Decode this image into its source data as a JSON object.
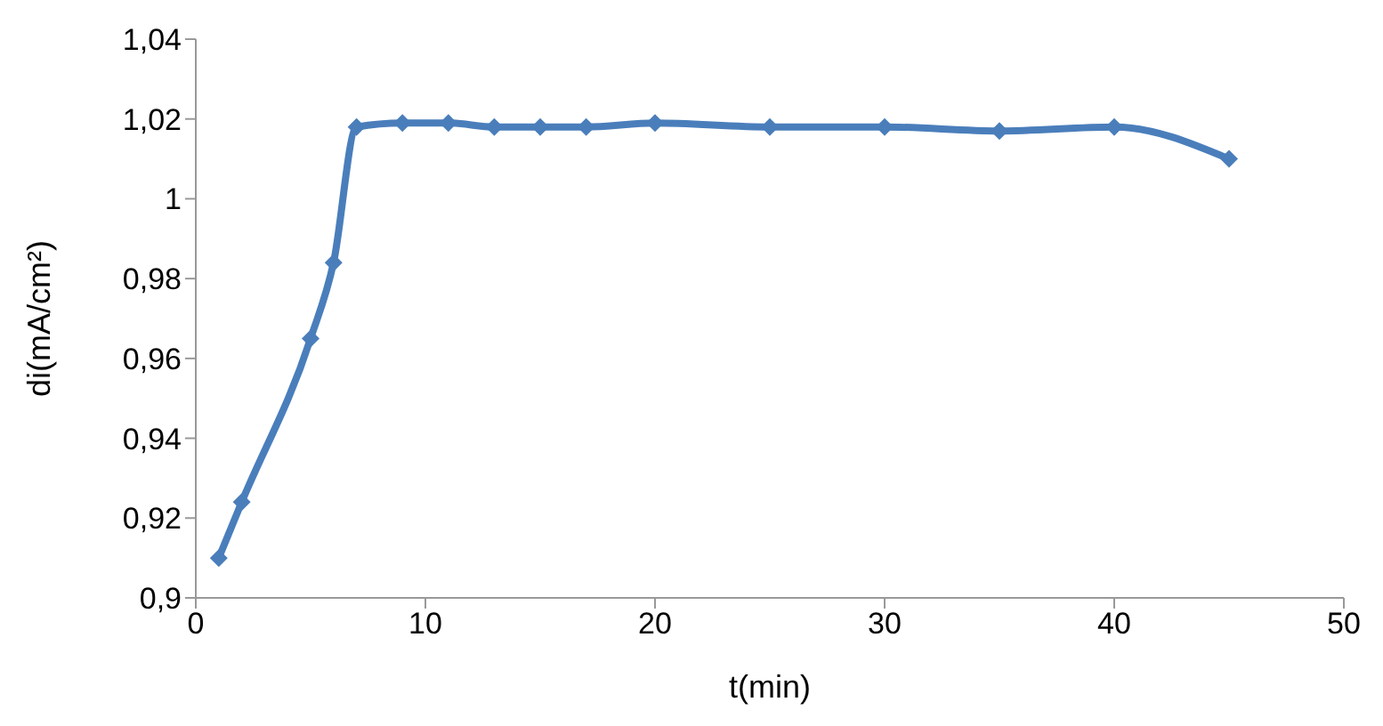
{
  "chart_data": {
    "type": "line",
    "xlabel": "t(min)",
    "ylabel": "di(mA/cm²)",
    "x": [
      1,
      2,
      5,
      6,
      7,
      9,
      11,
      13,
      15,
      17,
      20,
      25,
      30,
      35,
      40,
      45
    ],
    "series": [
      {
        "color": "#4a7ebb",
        "values": [
          0.91,
          0.924,
          0.965,
          0.984,
          1.018,
          1.019,
          1.019,
          1.018,
          1.018,
          1.018,
          1.019,
          1.018,
          1.018,
          1.017,
          1.018,
          1.01
        ]
      }
    ],
    "xlim": [
      0,
      50
    ],
    "xticks": [
      0,
      10,
      20,
      30,
      40,
      50
    ],
    "ylim": [
      0.9,
      1.04
    ],
    "yticks": [
      {
        "value": 0.9,
        "label": "0,9"
      },
      {
        "value": 0.92,
        "label": "0,92"
      },
      {
        "value": 0.94,
        "label": "0,94"
      },
      {
        "value": 0.96,
        "label": "0,96"
      },
      {
        "value": 0.98,
        "label": "0,98"
      },
      {
        "value": 1,
        "label": "1"
      },
      {
        "value": 1.02,
        "label": "1,02"
      },
      {
        "value": 1.04,
        "label": "1,04"
      }
    ],
    "grid": false,
    "legend": false,
    "marker": "diamond",
    "line_style": "solid"
  }
}
